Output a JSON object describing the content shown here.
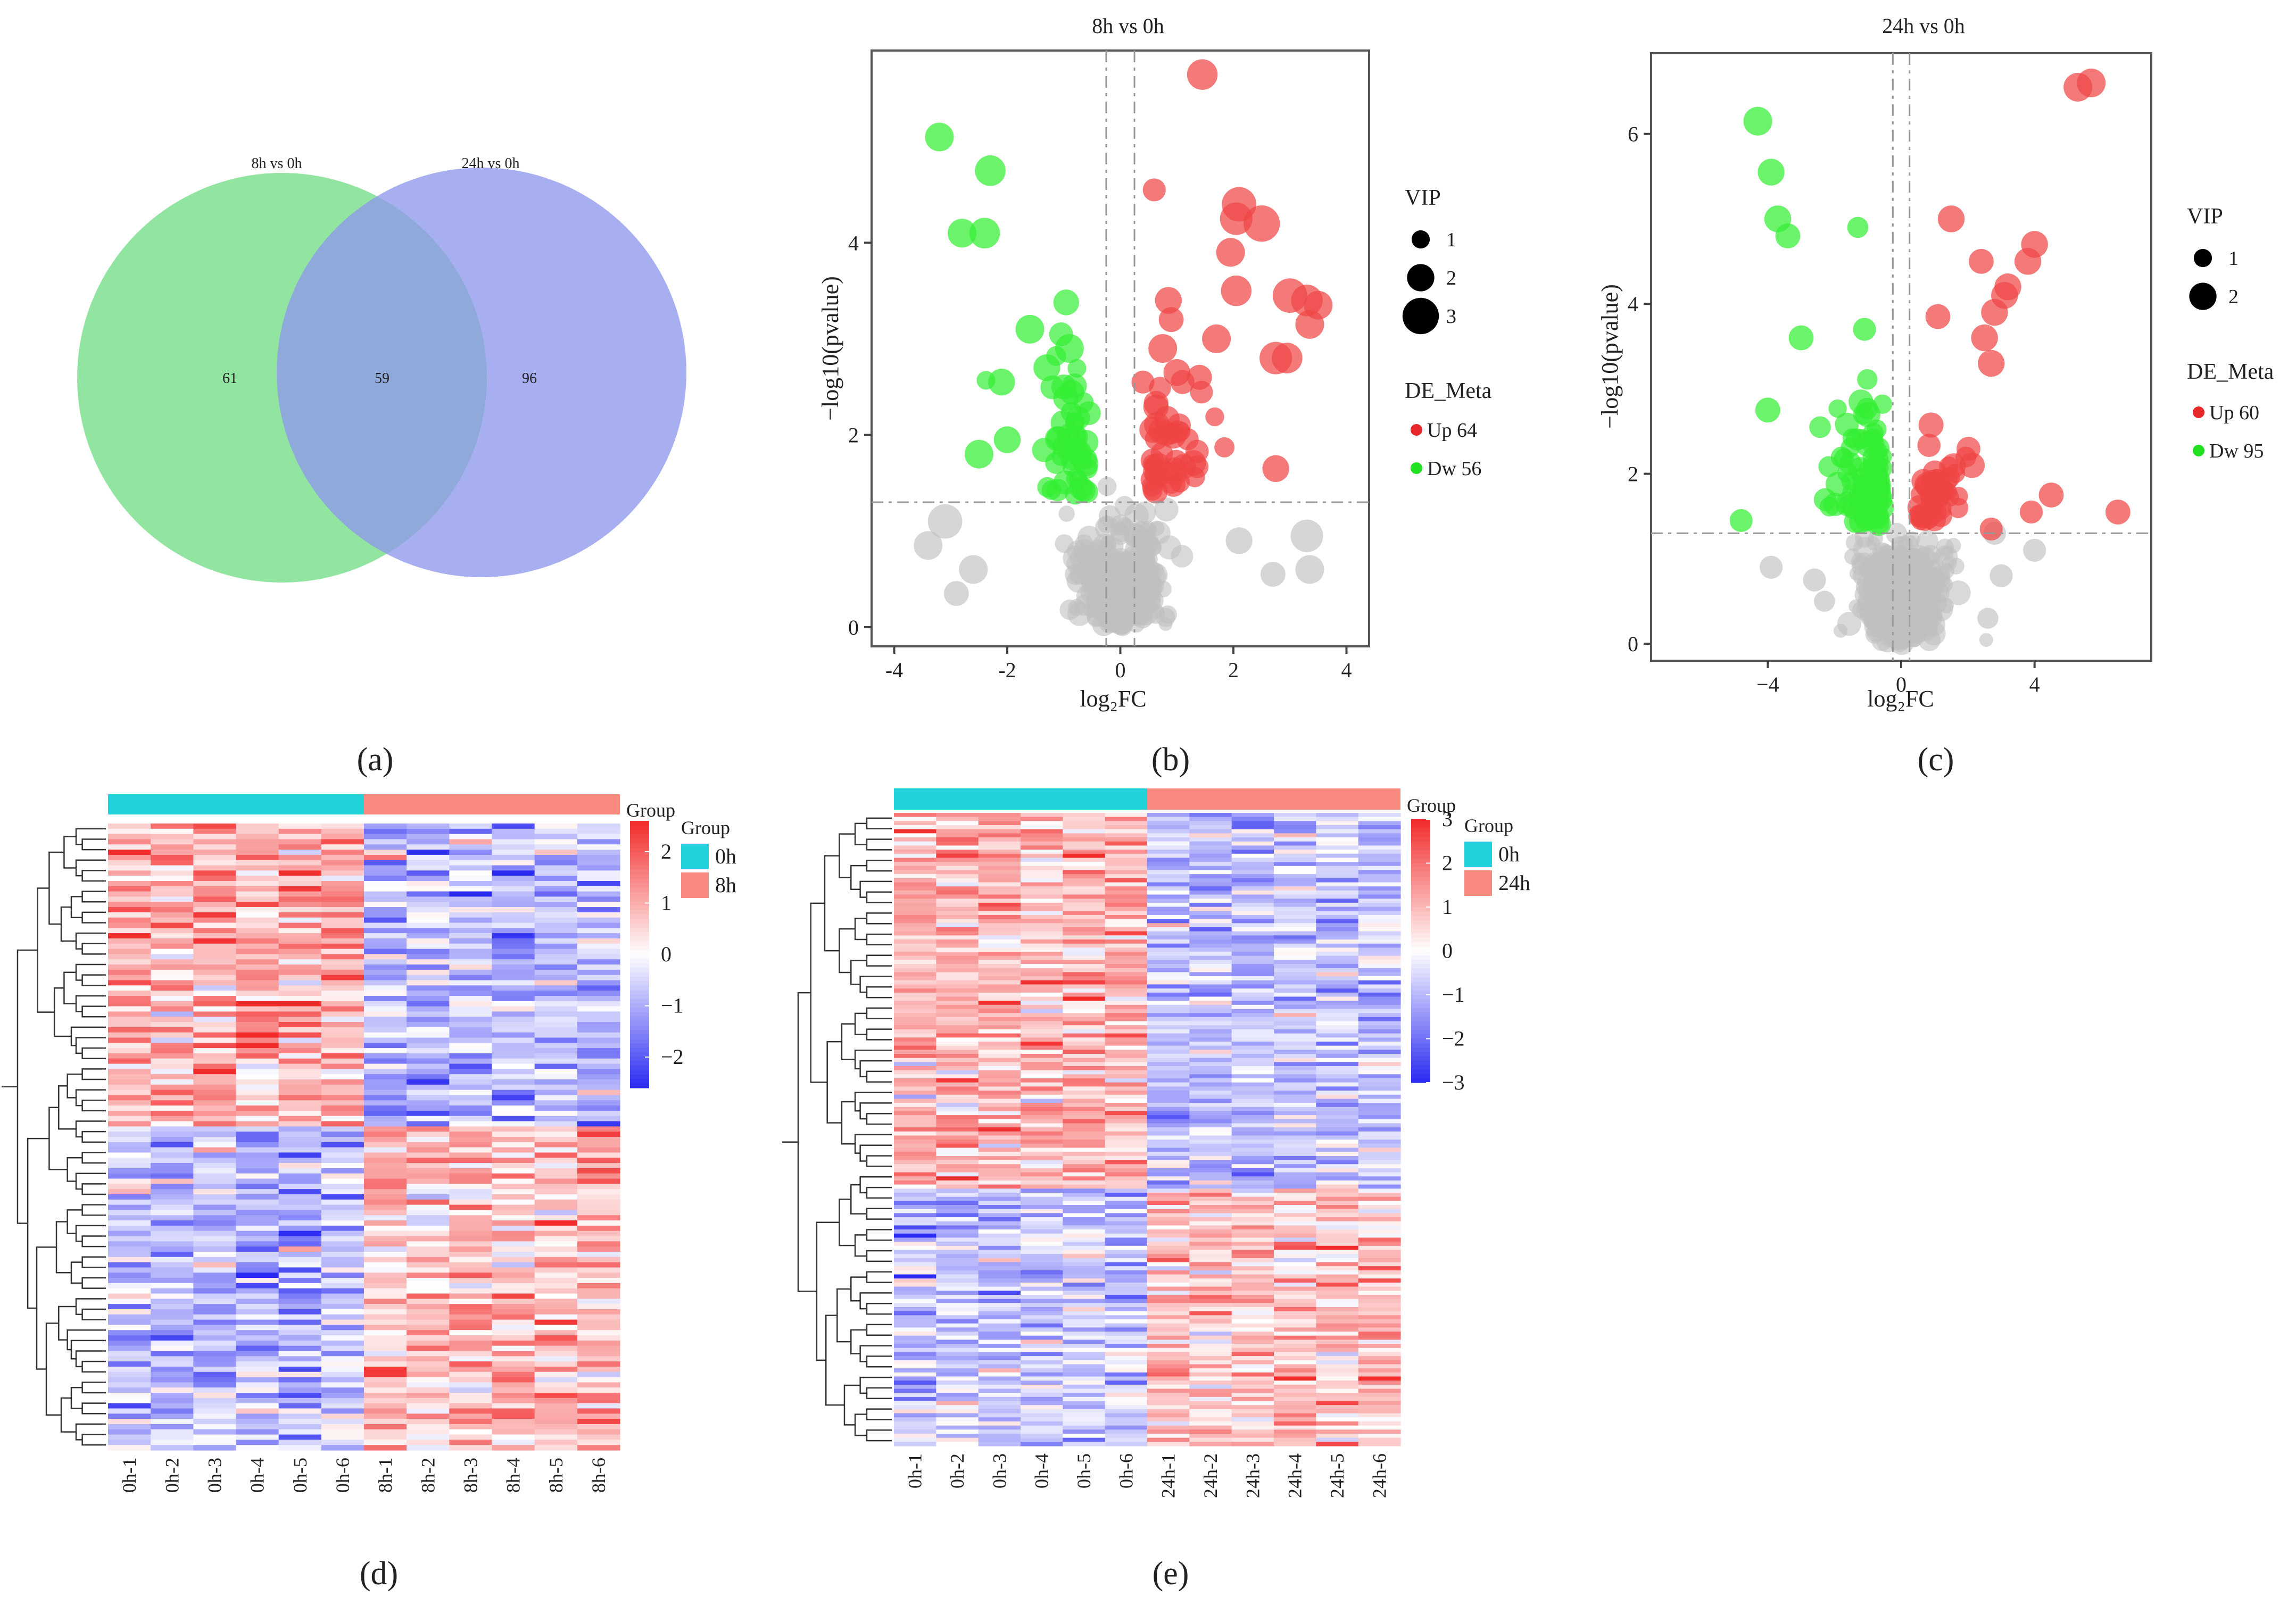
{
  "chart_data": [
    {
      "panel": "a",
      "type": "venn",
      "caption": "(a)",
      "sets": [
        {
          "name": "8h vs 0h",
          "only": 61,
          "color": "#7fe08f"
        },
        {
          "name": "24h vs 0h",
          "only": 96,
          "color": "#9aa4ee"
        }
      ],
      "overlap": 59,
      "overlap_color": "#5a9e8a"
    },
    {
      "panel": "b",
      "type": "scatter",
      "caption": "(b)",
      "title": "8h vs 0h",
      "xlabel": "log₂FC",
      "ylabel": "−log10(pvalue)",
      "xlim": [
        -4.4,
        4.4
      ],
      "ylim": [
        -0.2,
        6.0
      ],
      "xticks": [
        -4,
        -2,
        0,
        2,
        4
      ],
      "xtick_labels": [
        "-4",
        "-2",
        "0",
        "2",
        "4"
      ],
      "yticks": [
        0,
        2,
        4
      ],
      "ytick_labels": [
        "0",
        "2",
        "4"
      ],
      "fc_threshold": 0.25,
      "p_threshold": 1.3,
      "legend": {
        "size_title": "VIP",
        "sizes": [
          {
            "label": "1",
            "vip": 1
          },
          {
            "label": "2",
            "vip": 2
          },
          {
            "label": "3",
            "vip": 3
          }
        ],
        "color_title": "DE_Meta",
        "colors": [
          {
            "label": "Up 64",
            "color": "#e8282a"
          },
          {
            "label": "Dw 56",
            "color": "#20e020"
          }
        ]
      },
      "colors": {
        "up": "#f04545",
        "down": "#33ee33",
        "ns": "#c0c0c0"
      },
      "seed": 11,
      "counts": {
        "up": 64,
        "down": 56,
        "ns": 380
      },
      "highlight_up": [
        [
          1.45,
          5.75,
          2.2
        ],
        [
          0.6,
          4.55,
          1.4
        ],
        [
          2.1,
          4.4,
          2.6
        ],
        [
          2.05,
          4.25,
          2.4
        ],
        [
          2.5,
          4.2,
          2.8
        ],
        [
          1.95,
          3.9,
          2.0
        ],
        [
          3.0,
          3.45,
          2.6
        ],
        [
          3.3,
          3.4,
          2.3
        ],
        [
          3.5,
          3.35,
          2.0
        ],
        [
          3.35,
          3.15,
          2.0
        ],
        [
          2.05,
          3.5,
          2.2
        ],
        [
          0.85,
          3.4,
          1.8
        ],
        [
          0.9,
          3.2,
          1.6
        ],
        [
          1.7,
          3.0,
          2.0
        ],
        [
          0.75,
          2.9,
          2.0
        ],
        [
          2.75,
          2.8,
          2.4
        ],
        [
          2.95,
          2.8,
          2.2
        ],
        [
          1.0,
          2.65,
          1.8
        ],
        [
          1.4,
          2.6,
          1.6
        ],
        [
          0.4,
          2.55,
          1.4
        ],
        [
          1.1,
          2.55,
          1.5
        ],
        [
          2.75,
          1.65,
          1.8
        ]
      ],
      "highlight_down": [
        [
          -3.2,
          5.1,
          2.0
        ],
        [
          -2.3,
          4.75,
          2.2
        ],
        [
          -2.4,
          4.1,
          2.2
        ],
        [
          -2.8,
          4.1,
          2.0
        ],
        [
          -1.6,
          3.1,
          2.0
        ],
        [
          -0.9,
          2.9,
          2.0
        ],
        [
          -1.3,
          2.7,
          1.8
        ],
        [
          -2.1,
          2.55,
          1.8
        ],
        [
          -1.0,
          2.5,
          1.6
        ],
        [
          -2.5,
          1.8,
          2.0
        ],
        [
          -2.0,
          1.95,
          1.8
        ]
      ],
      "gray_big": [
        [
          -3.1,
          1.1,
          2.6
        ],
        [
          -3.4,
          0.85,
          2.0
        ],
        [
          -2.6,
          0.6,
          2.0
        ],
        [
          -2.9,
          0.35,
          1.6
        ],
        [
          2.1,
          0.9,
          1.8
        ],
        [
          2.7,
          0.55,
          1.6
        ],
        [
          3.3,
          0.95,
          2.4
        ],
        [
          3.35,
          0.6,
          2.0
        ]
      ]
    },
    {
      "panel": "c",
      "type": "scatter",
      "caption": "(c)",
      "title": "24h vs 0h",
      "xlabel": "log₂FC",
      "ylabel": "−log10(pvalue)",
      "xlim": [
        -7.5,
        7.5
      ],
      "ylim": [
        -0.2,
        6.95
      ],
      "xticks": [
        -4,
        0,
        4
      ],
      "xtick_labels": [
        "−4",
        "0",
        "4"
      ],
      "yticks": [
        0,
        2,
        4,
        6
      ],
      "ytick_labels": [
        "0",
        "2",
        "4",
        "6"
      ],
      "fc_threshold": 0.25,
      "p_threshold": 1.3,
      "legend": {
        "size_title": "VIP",
        "sizes": [
          {
            "label": "1",
            "vip": 1
          },
          {
            "label": "2",
            "vip": 2
          }
        ],
        "color_title": "DE_Meta",
        "colors": [
          {
            "label": "Up 60",
            "color": "#e8282a"
          },
          {
            "label": "Dw 95",
            "color": "#20e020"
          }
        ]
      },
      "colors": {
        "up": "#f04545",
        "down": "#33ee33",
        "ns": "#c0c0c0"
      },
      "seed": 29,
      "counts": {
        "up": 60,
        "down": 95,
        "ns": 420
      },
      "highlight_up": [
        [
          5.3,
          6.55,
          2.0
        ],
        [
          5.7,
          6.6,
          2.0
        ],
        [
          1.5,
          5.0,
          1.8
        ],
        [
          4.0,
          4.7,
          1.8
        ],
        [
          3.8,
          4.5,
          1.8
        ],
        [
          2.4,
          4.5,
          1.6
        ],
        [
          3.2,
          4.2,
          1.8
        ],
        [
          3.1,
          4.1,
          1.8
        ],
        [
          2.8,
          3.9,
          1.8
        ],
        [
          1.1,
          3.85,
          1.6
        ],
        [
          2.5,
          3.6,
          1.8
        ],
        [
          2.7,
          3.3,
          1.8
        ],
        [
          4.5,
          1.75,
          1.6
        ],
        [
          6.5,
          1.55,
          1.6
        ],
        [
          3.9,
          1.55,
          1.4
        ],
        [
          2.7,
          1.35,
          1.4
        ]
      ],
      "highlight_down": [
        [
          -4.3,
          6.15,
          2.0
        ],
        [
          -3.9,
          5.55,
          1.8
        ],
        [
          -3.7,
          5.0,
          1.8
        ],
        [
          -3.4,
          4.8,
          1.6
        ],
        [
          -1.3,
          4.9,
          1.2
        ],
        [
          -1.1,
          3.7,
          1.4
        ],
        [
          -3.0,
          3.6,
          1.6
        ],
        [
          -4.0,
          2.75,
          1.6
        ],
        [
          -4.8,
          1.45,
          1.4
        ]
      ],
      "gray_big": [
        [
          -3.9,
          0.9,
          1.4
        ],
        [
          -2.6,
          0.75,
          1.4
        ],
        [
          2.8,
          1.3,
          1.4
        ],
        [
          3.0,
          0.8,
          1.4
        ],
        [
          4.0,
          1.1,
          1.4
        ],
        [
          2.6,
          0.3,
          1.2
        ],
        [
          -2.3,
          0.5,
          1.2
        ]
      ]
    },
    {
      "panel": "d",
      "type": "heatmap",
      "caption": "(d)",
      "columns": [
        "0h-1",
        "0h-2",
        "0h-3",
        "0h-4",
        "0h-5",
        "0h-6",
        "8h-1",
        "8h-2",
        "8h-3",
        "8h-4",
        "8h-5",
        "8h-6"
      ],
      "rows": 120,
      "seed": 7,
      "split_row": 58,
      "group_title": "Group",
      "groups": [
        {
          "label": "0h",
          "color": "#22d2da",
          "count": 6
        },
        {
          "label": "8h",
          "color": "#fa8a80",
          "count": 6
        }
      ],
      "color_scale": {
        "min": -2.6,
        "max": 2.6,
        "ticks": [
          2,
          1,
          0,
          -1,
          -2
        ],
        "tick_labels": [
          "2",
          "1",
          "0",
          "−1",
          "−2"
        ],
        "low": "#2a2af2",
        "mid": "#ffffff",
        "high": "#f22a2a"
      }
    },
    {
      "panel": "e",
      "type": "heatmap",
      "caption": "(e)",
      "columns": [
        "0h-1",
        "0h-2",
        "0h-3",
        "0h-4",
        "0h-5",
        "0h-6",
        "24h-1",
        "24h-2",
        "24h-3",
        "24h-4",
        "24h-5",
        "24h-6"
      ],
      "rows": 155,
      "seed": 19,
      "split_row": 92,
      "group_title": "Group",
      "groups": [
        {
          "label": "0h",
          "color": "#22d2da",
          "count": 6
        },
        {
          "label": "24h",
          "color": "#fa8a80",
          "count": 6
        }
      ],
      "color_scale": {
        "min": -3,
        "max": 3,
        "ticks": [
          3,
          2,
          1,
          0,
          -1,
          -2,
          -3
        ],
        "tick_labels": [
          "3",
          "2",
          "1",
          "0",
          "−1",
          "−2",
          "−3"
        ],
        "low": "#2a2af2",
        "mid": "#ffffff",
        "high": "#f22a2a"
      }
    }
  ]
}
